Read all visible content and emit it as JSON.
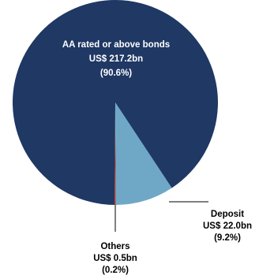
{
  "chart_data": {
    "type": "pie",
    "title": "",
    "slices": [
      {
        "name": "AA rated or above bonds",
        "value_label": "US$ 217.2bn",
        "pct_label": "(90.6%)",
        "value": 217.2,
        "pct": 90.6,
        "color": "#1f3864"
      },
      {
        "name": "Deposit",
        "value_label": "US$ 22.0bn",
        "pct_label": "(9.2%)",
        "value": 22.0,
        "pct": 9.2,
        "color": "#6fa8c7"
      },
      {
        "name": "Others",
        "value_label": "US$ 0.5bn",
        "pct_label": "(0.2%)",
        "value": 0.5,
        "pct": 0.2,
        "color": "#c0392b"
      }
    ],
    "legend": "none"
  }
}
